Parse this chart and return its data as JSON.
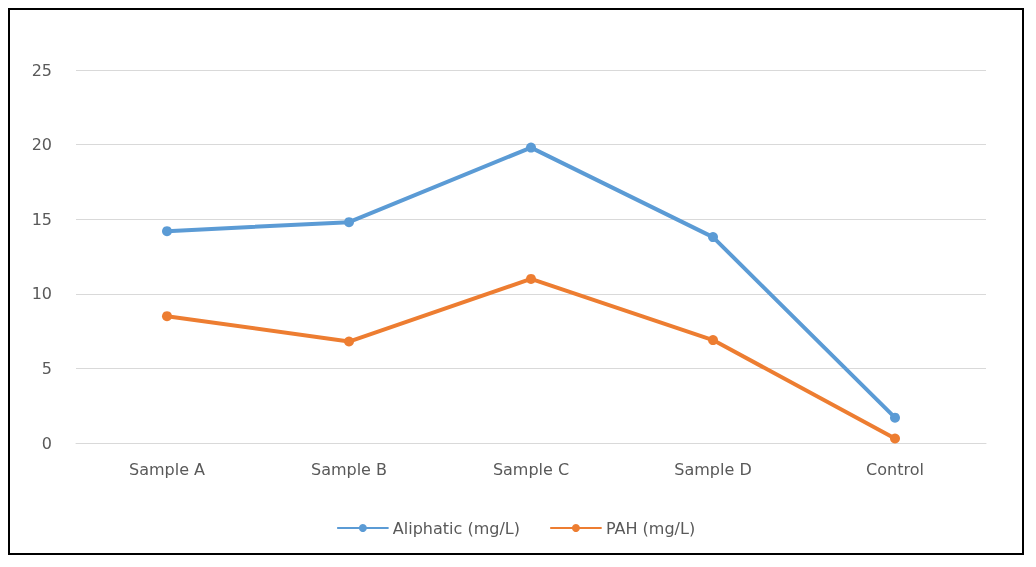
{
  "chart_data": {
    "type": "line",
    "categories": [
      "Sample A",
      "Sample B",
      "Sample C",
      "Sample D",
      "Control"
    ],
    "series": [
      {
        "name": "Aliphatic (mg/L)",
        "color": "#5b9bd5",
        "values": [
          14.2,
          14.8,
          19.8,
          13.8,
          1.7
        ]
      },
      {
        "name": "PAH (mg/L)",
        "color": "#ed7d31",
        "values": [
          8.5,
          6.8,
          11.0,
          6.9,
          0.3
        ]
      }
    ],
    "ylim": [
      0,
      25
    ],
    "yticks": [
      0,
      5,
      10,
      15,
      20,
      25
    ],
    "grid": "y",
    "legend": "bottom",
    "marker": "circle",
    "line_style": "solid"
  }
}
